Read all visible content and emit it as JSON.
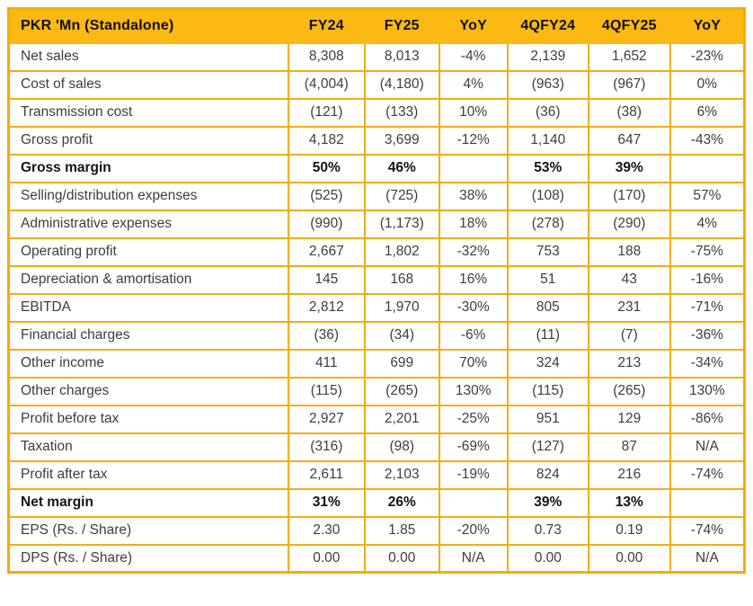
{
  "colors": {
    "header_bg": "#FCB813",
    "border": "#F6AC0A",
    "text": "#3D3D3C",
    "bold_text": "#141414"
  },
  "table": {
    "columns": [
      {
        "label": "PKR 'Mn (Standalone)"
      },
      {
        "label": "FY24"
      },
      {
        "label": "FY25"
      },
      {
        "label": "YoY"
      },
      {
        "label": "4QFY24"
      },
      {
        "label": "4QFY25"
      },
      {
        "label": "YoY"
      }
    ],
    "rows": [
      {
        "label": "Net sales",
        "values": [
          "8,308",
          "8,013",
          "-4%",
          "2,139",
          "1,652",
          "-23%"
        ],
        "bold": false
      },
      {
        "label": "Cost of sales",
        "values": [
          "(4,004)",
          "(4,180)",
          "4%",
          "(963)",
          "(967)",
          "0%"
        ],
        "bold": false
      },
      {
        "label": "Transmission cost",
        "values": [
          "(121)",
          "(133)",
          "10%",
          "(36)",
          "(38)",
          "6%"
        ],
        "bold": false
      },
      {
        "label": "Gross profit",
        "values": [
          "4,182",
          "3,699",
          "-12%",
          "1,140",
          "647",
          "-43%"
        ],
        "bold": false
      },
      {
        "label": "Gross margin",
        "values": [
          "50%",
          "46%",
          "",
          "53%",
          "39%",
          ""
        ],
        "bold": true
      },
      {
        "label": "Selling/distribution expenses",
        "values": [
          "(525)",
          "(725)",
          "38%",
          "(108)",
          "(170)",
          "57%"
        ],
        "bold": false
      },
      {
        "label": "Administrative expenses",
        "values": [
          "(990)",
          "(1,173)",
          "18%",
          "(278)",
          "(290)",
          "4%"
        ],
        "bold": false
      },
      {
        "label": "Operating profit",
        "values": [
          "2,667",
          "1,802",
          "-32%",
          "753",
          "188",
          "-75%"
        ],
        "bold": false
      },
      {
        "label": "Depreciation & amortisation",
        "values": [
          "145",
          "168",
          "16%",
          "51",
          "43",
          "-16%"
        ],
        "bold": false
      },
      {
        "label": "EBITDA",
        "values": [
          "2,812",
          "1,970",
          "-30%",
          "805",
          "231",
          "-71%"
        ],
        "bold": false
      },
      {
        "label": "Financial charges",
        "values": [
          "(36)",
          "(34)",
          "-6%",
          "(11)",
          "(7)",
          "-36%"
        ],
        "bold": false
      },
      {
        "label": "Other income",
        "values": [
          "411",
          "699",
          "70%",
          "324",
          "213",
          "-34%"
        ],
        "bold": false
      },
      {
        "label": "Other charges",
        "values": [
          "(115)",
          "(265)",
          "130%",
          "(115)",
          "(265)",
          "130%"
        ],
        "bold": false
      },
      {
        "label": "Profit before tax",
        "values": [
          "2,927",
          "2,201",
          "-25%",
          "951",
          "129",
          "-86%"
        ],
        "bold": false
      },
      {
        "label": "Taxation",
        "values": [
          "(316)",
          "(98)",
          "-69%",
          "(127)",
          "87",
          "N/A"
        ],
        "bold": false
      },
      {
        "label": "Profit after tax",
        "values": [
          "2,611",
          "2,103",
          "-19%",
          "824",
          "216",
          "-74%"
        ],
        "bold": false
      },
      {
        "label": "Net margin",
        "values": [
          "31%",
          "26%",
          "",
          "39%",
          "13%",
          ""
        ],
        "bold": true
      },
      {
        "label": "EPS (Rs. / Share)",
        "values": [
          "2.30",
          "1.85",
          "-20%",
          "0.73",
          "0.19",
          "-74%"
        ],
        "bold": false
      },
      {
        "label": "DPS (Rs. / Share)",
        "values": [
          "0.00",
          "0.00",
          "N/A",
          "0.00",
          "0.00",
          "N/A"
        ],
        "bold": false
      }
    ]
  }
}
